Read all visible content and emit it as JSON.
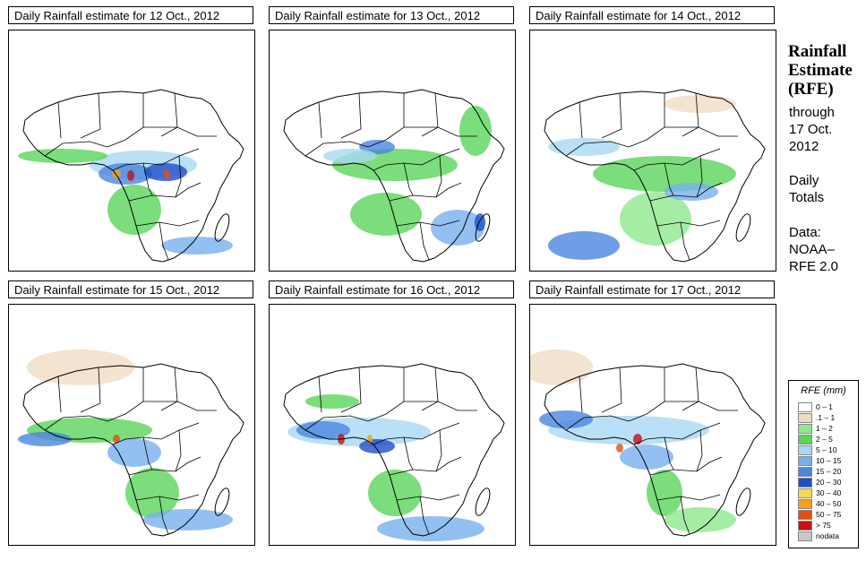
{
  "panels": [
    {
      "title": "Daily Rainfall estimate for  12 Oct., 2012",
      "date": "12 Oct."
    },
    {
      "title": "Daily Rainfall estimate for  13 Oct., 2012",
      "date": "13 Oct."
    },
    {
      "title": "Daily Rainfall estimate for  14 Oct., 2012",
      "date": "14 Oct."
    },
    {
      "title": "Daily Rainfall estimate for  15 Oct., 2012",
      "date": "15 Oct."
    },
    {
      "title": "Daily Rainfall estimate for  16 Oct., 2012",
      "date": "16 Oct."
    },
    {
      "title": "Daily Rainfall estimate for  17 Oct., 2012",
      "date": "17 Oct."
    }
  ],
  "side": {
    "title_line1": "Rainfall",
    "title_line2": "Estimate",
    "title_line3": "(RFE)",
    "through": "through",
    "through_date": "17 Oct.",
    "through_year": "2012",
    "daily1": "Daily",
    "daily2": "Totals",
    "data1": "Data:",
    "data2": "NOAA–",
    "data3": "RFE 2.0"
  },
  "legend": {
    "title": "RFE (mm)",
    "items": [
      {
        "label": "0 – 1",
        "color": "#ffffff"
      },
      {
        "label": ".1 – 1",
        "color": "#f0dcc4"
      },
      {
        "label": "1 – 2",
        "color": "#8ee88e"
      },
      {
        "label": "2 – 5",
        "color": "#5ad45a"
      },
      {
        "label": "5 – 10",
        "color": "#a8d8f4"
      },
      {
        "label": "10 – 15",
        "color": "#78b0ec"
      },
      {
        "label": "15 – 20",
        "color": "#4a86e0"
      },
      {
        "label": "20 – 30",
        "color": "#1e4ec8"
      },
      {
        "label": "30 – 40",
        "color": "#f8d850"
      },
      {
        "label": "40 – 50",
        "color": "#f4a018"
      },
      {
        "label": "50 – 75",
        "color": "#e05010"
      },
      {
        "label": "> 75",
        "color": "#c81010"
      },
      {
        "label": "nodata",
        "color": "#c8c8c8"
      }
    ]
  }
}
